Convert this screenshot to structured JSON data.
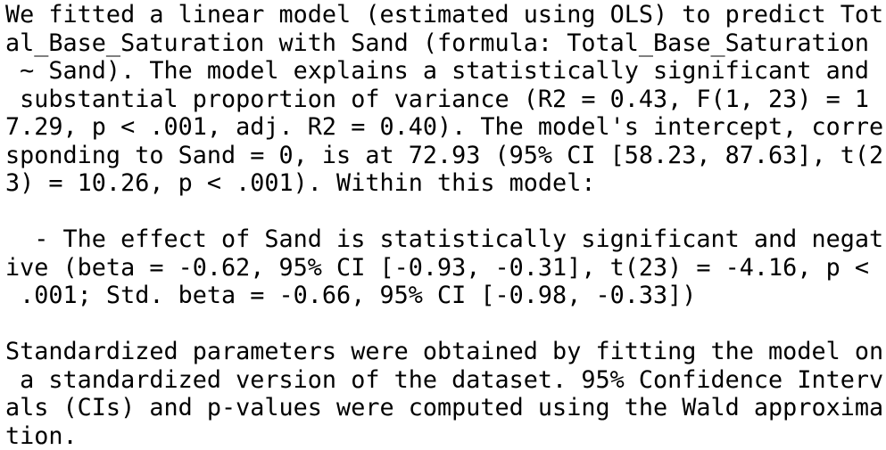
{
  "report": {
    "lines": [
      "We fitted a linear model (estimated using OLS) to predict Tot",
      "al_Base_Saturation with Sand (formula: Total_Base_Saturation",
      " ~ Sand). The model explains a statistically significant and",
      " substantial proportion of variance (R2 = 0.43, F(1, 23) = 1",
      "7.29, p < .001, adj. R2 = 0.40). The model's intercept, corre",
      "sponding to Sand = 0, is at 72.93 (95% CI [58.23, 87.63], t(2",
      "3) = 10.26, p < .001). Within this model:",
      "",
      "  - The effect of Sand is statistically significant and negat",
      "ive (beta = -0.62, 95% CI [-0.93, -0.31], t(23) = -4.16, p <",
      " .001; Std. beta = -0.66, 95% CI [-0.98, -0.33])",
      "",
      "Standardized parameters were obtained by fitting the model on",
      " a standardized version of the dataset. 95% Confidence Interv",
      "als (CIs) and p-values were computed using the Wald approxima",
      "tion."
    ]
  }
}
